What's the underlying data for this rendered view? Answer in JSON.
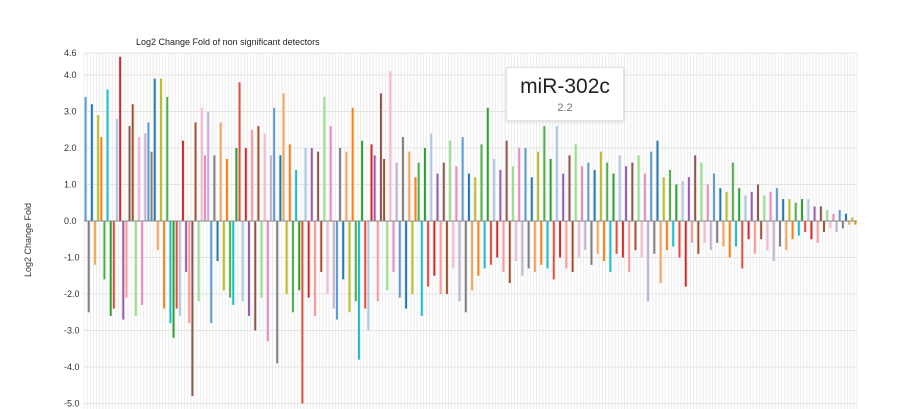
{
  "chart_data": {
    "type": "bar",
    "title": "Log2 Change Fold of non significant detectors",
    "ylabel": "Log2 Change Fold",
    "xlabel": "",
    "ylim": [
      -5.0,
      4.6
    ],
    "yticks": [
      "4.6",
      "4.0",
      "3.0",
      "2.0",
      "1.0",
      "0.0",
      "-1.0",
      "-2.0",
      "-3.0",
      "-4.0",
      "-5.0"
    ],
    "grid": true,
    "legend": "none",
    "palette": [
      "#5b9bd5",
      "#f5a45a",
      "#4daf4a",
      "#e74c3c",
      "#9b59b6",
      "#a0522d",
      "#e78ac3",
      "#7f7f7f",
      "#bcbd22",
      "#17becf",
      "#aec7e8",
      "#ff9896",
      "#98df8a",
      "#c5b0d5",
      "#1f77b4",
      "#ff7f0e",
      "#2ca02c",
      "#d62728",
      "#8c564b",
      "#f7b6d2"
    ],
    "values": [
      3.4,
      -2.5,
      3.2,
      -1.2,
      2.9,
      2.3,
      -1.6,
      3.6,
      -2.6,
      -2.4,
      2.8,
      4.5,
      -2.7,
      -2.1,
      2.6,
      3.2,
      -2.6,
      2.3,
      -2.3,
      2.4,
      2.7,
      1.9,
      3.9,
      -0.8,
      3.9,
      -2.4,
      3.4,
      -2.8,
      -3.2,
      -2.4,
      -2.6,
      2.2,
      -1.4,
      -2.8,
      -4.8,
      2.7,
      -2.2,
      3.1,
      1.8,
      3.0,
      -2.8,
      1.8,
      -1.1,
      2.7,
      -1.9,
      1.7,
      -2.1,
      -2.3,
      2.0,
      3.8,
      -2.2,
      2.0,
      -2.6,
      2.5,
      -3.0,
      2.6,
      -2.1,
      2.4,
      -3.3,
      1.8,
      3.1,
      -3.9,
      1.8,
      3.5,
      -2.0,
      2.1,
      -2.5,
      1.4,
      -1.9,
      -5.0,
      2.0,
      -2.1,
      2.0,
      -2.6,
      1.9,
      -1.4,
      3.4,
      -2.0,
      2.6,
      -2.4,
      -2.7,
      2.0,
      -1.6,
      1.9,
      -2.5,
      3.1,
      -2.2,
      -3.8,
      2.2,
      -2.4,
      -3.0,
      2.1,
      1.8,
      -2.2,
      3.5,
      1.7,
      -1.9,
      4.1,
      -1.4,
      1.6,
      -2.1,
      2.3,
      -2.4,
      1.9,
      -2.0,
      1.2,
      1.6,
      -2.6,
      2.0,
      -1.8,
      2.4,
      -1.5,
      1.3,
      -2.0,
      1.6,
      -2.0,
      2.2,
      -1.3,
      1.5,
      -2.2,
      2.3,
      -2.5,
      1.3,
      -1.9,
      1.2,
      -1.5,
      2.1,
      -1.3,
      3.1,
      -1.2,
      1.7,
      -1.0,
      1.4,
      -1.4,
      2.2,
      -1.7,
      1.5,
      -1.1,
      2.0,
      -1.5,
      2.0,
      -1.3,
      1.2,
      -1.4,
      1.9,
      -1.2,
      2.6,
      -1.3,
      1.7,
      -1.6,
      2.6,
      -1.0,
      1.3,
      -1.3,
      1.8,
      -1.4,
      2.1,
      -1.0,
      1.5,
      -0.8,
      1.6,
      -1.2,
      1.4,
      -0.9,
      1.9,
      -1.1,
      1.6,
      -1.4,
      1.3,
      -0.9,
      1.8,
      -1.0,
      1.5,
      -1.4,
      1.6,
      -0.8,
      1.8,
      -1.0,
      1.3,
      -2.2,
      1.9,
      -0.9,
      2.2,
      -1.7,
      1.2,
      -0.8,
      1.4,
      -0.7,
      1.0,
      -1.0,
      1.1,
      -1.8,
      1.2,
      -0.6,
      1.8,
      -0.9,
      1.6,
      -0.6,
      1.0,
      -0.8,
      1.3,
      -0.6,
      0.9,
      -0.7,
      0.8,
      -1.0,
      1.6,
      -0.7,
      0.9,
      -1.3,
      0.7,
      -0.5,
      0.8,
      -0.9,
      1.0,
      -0.5,
      0.7,
      -0.8,
      0.8,
      -1.1,
      0.9,
      -0.7,
      0.6,
      -0.8,
      0.6,
      -0.5,
      0.5,
      -0.4,
      0.6,
      -0.3,
      0.6,
      -0.5,
      0.4,
      -0.6,
      0.4,
      -0.3,
      0.3,
      -0.2,
      0.2,
      -0.3,
      0.3,
      -0.2,
      0.2,
      -0.1,
      0.1,
      -0.1
    ],
    "highlight": {
      "name": "miR-302c",
      "value": "2.2"
    }
  }
}
